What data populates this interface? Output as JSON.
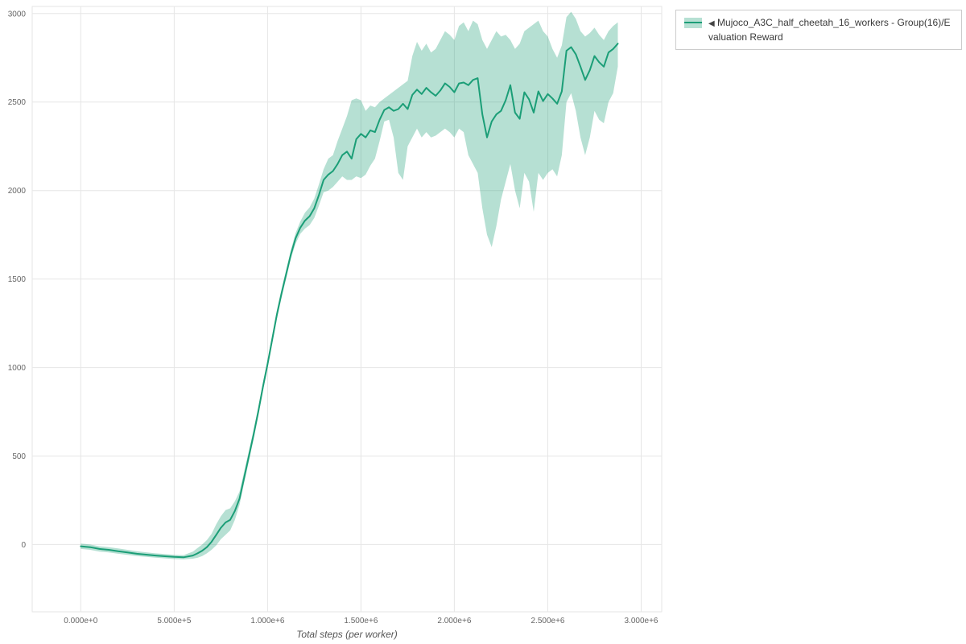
{
  "chart_data": {
    "type": "line",
    "xlabel": "Total steps (per worker)",
    "xlim": [
      -260000,
      3110000
    ],
    "ylim": [
      -380,
      3040
    ],
    "grid": true,
    "legend_position": "top-right",
    "x_ticks": [
      {
        "value": 0,
        "label": "0.000e+0"
      },
      {
        "value": 500000,
        "label": "5.000e+5"
      },
      {
        "value": 1000000,
        "label": "1.000e+6"
      },
      {
        "value": 1500000,
        "label": "1.500e+6"
      },
      {
        "value": 2000000,
        "label": "2.000e+6"
      },
      {
        "value": 2500000,
        "label": "2.500e+6"
      },
      {
        "value": 3000000,
        "label": "3.000e+6"
      }
    ],
    "y_ticks": [
      0,
      500,
      1000,
      1500,
      2000,
      2500,
      3000
    ],
    "colors": {
      "line": "#1b9e77",
      "band": "rgba(27,158,119,0.32)",
      "band_solid": "#b6e0d3",
      "grid": "#e6e6e6",
      "tick_text": "#666666",
      "axis_title": "#555555"
    },
    "legend": {
      "collapse_icon": "◀",
      "entries": [
        {
          "label": "Mujoco_A3C_half_cheetah_16_workers - Group(16)/Evaluation Reward"
        }
      ]
    },
    "series": [
      {
        "name": "Mujoco_A3C_half_cheetah_16_workers - Group(16)/Evaluation Reward",
        "x": [
          0,
          50000,
          100000,
          150000,
          200000,
          250000,
          300000,
          350000,
          400000,
          450000,
          500000,
          550000,
          600000,
          625000,
          650000,
          675000,
          700000,
          725000,
          750000,
          775000,
          800000,
          825000,
          850000,
          875000,
          900000,
          925000,
          950000,
          975000,
          1000000,
          1025000,
          1050000,
          1075000,
          1100000,
          1125000,
          1150000,
          1175000,
          1200000,
          1225000,
          1250000,
          1275000,
          1300000,
          1325000,
          1350000,
          1375000,
          1400000,
          1425000,
          1450000,
          1475000,
          1500000,
          1525000,
          1550000,
          1575000,
          1600000,
          1625000,
          1650000,
          1675000,
          1700000,
          1725000,
          1750000,
          1775000,
          1800000,
          1825000,
          1850000,
          1875000,
          1900000,
          1925000,
          1950000,
          1975000,
          2000000,
          2025000,
          2050000,
          2075000,
          2100000,
          2125000,
          2150000,
          2175000,
          2200000,
          2225000,
          2250000,
          2275000,
          2300000,
          2325000,
          2350000,
          2375000,
          2400000,
          2425000,
          2450000,
          2475000,
          2500000,
          2525000,
          2550000,
          2575000,
          2600000,
          2625000,
          2650000,
          2675000,
          2700000,
          2725000,
          2750000,
          2775000,
          2800000,
          2825000,
          2850000,
          2875000
        ],
        "mean": [
          -10,
          -15,
          -25,
          -30,
          -38,
          -45,
          -52,
          -57,
          -62,
          -66,
          -70,
          -72,
          -62,
          -50,
          -35,
          -15,
          15,
          55,
          95,
          125,
          140,
          190,
          260,
          380,
          500,
          620,
          750,
          890,
          1020,
          1160,
          1300,
          1420,
          1530,
          1640,
          1730,
          1790,
          1830,
          1855,
          1900,
          1975,
          2060,
          2090,
          2110,
          2150,
          2200,
          2220,
          2180,
          2290,
          2320,
          2300,
          2340,
          2330,
          2400,
          2455,
          2470,
          2450,
          2460,
          2490,
          2460,
          2540,
          2570,
          2545,
          2580,
          2555,
          2535,
          2565,
          2605,
          2585,
          2555,
          2605,
          2610,
          2595,
          2625,
          2635,
          2430,
          2300,
          2390,
          2430,
          2450,
          2510,
          2595,
          2440,
          2405,
          2555,
          2515,
          2440,
          2560,
          2505,
          2545,
          2520,
          2490,
          2560,
          2790,
          2810,
          2770,
          2700,
          2625,
          2680,
          2760,
          2725,
          2700,
          2780,
          2800,
          2830
        ],
        "lower": [
          -25,
          -30,
          -40,
          -45,
          -52,
          -58,
          -65,
          -70,
          -74,
          -78,
          -82,
          -84,
          -80,
          -75,
          -65,
          -50,
          -30,
          -5,
          30,
          55,
          80,
          140,
          225,
          350,
          470,
          595,
          725,
          865,
          995,
          1135,
          1275,
          1395,
          1505,
          1615,
          1700,
          1755,
          1785,
          1805,
          1845,
          1915,
          1990,
          2000,
          2020,
          2050,
          2080,
          2060,
          2060,
          2080,
          2070,
          2090,
          2140,
          2180,
          2280,
          2390,
          2400,
          2300,
          2100,
          2060,
          2250,
          2300,
          2350,
          2300,
          2330,
          2300,
          2310,
          2330,
          2350,
          2330,
          2300,
          2350,
          2330,
          2200,
          2150,
          2100,
          1900,
          1750,
          1680,
          1800,
          1950,
          2050,
          2150,
          2000,
          1900,
          2100,
          2050,
          1880,
          2100,
          2060,
          2100,
          2120,
          2080,
          2200,
          2500,
          2550,
          2450,
          2300,
          2200,
          2300,
          2450,
          2400,
          2380,
          2500,
          2550,
          2700
        ],
        "upper": [
          5,
          0,
          -10,
          -15,
          -22,
          -30,
          -38,
          -44,
          -50,
          -54,
          -58,
          -60,
          -40,
          -20,
          0,
          25,
          60,
          115,
          160,
          195,
          205,
          245,
          300,
          415,
          530,
          650,
          775,
          915,
          1045,
          1185,
          1325,
          1445,
          1555,
          1665,
          1760,
          1825,
          1875,
          1905,
          1955,
          2035,
          2120,
          2180,
          2200,
          2280,
          2350,
          2420,
          2510,
          2520,
          2510,
          2450,
          2480,
          2470,
          2500,
          2520,
          2540,
          2560,
          2580,
          2600,
          2620,
          2760,
          2840,
          2790,
          2830,
          2780,
          2800,
          2850,
          2900,
          2880,
          2850,
          2930,
          2950,
          2900,
          2960,
          2940,
          2850,
          2800,
          2850,
          2900,
          2870,
          2880,
          2850,
          2800,
          2830,
          2900,
          2920,
          2940,
          2960,
          2900,
          2870,
          2800,
          2750,
          2820,
          2980,
          3010,
          2970,
          2900,
          2870,
          2890,
          2920,
          2880,
          2850,
          2900,
          2930,
          2950
        ]
      }
    ]
  }
}
